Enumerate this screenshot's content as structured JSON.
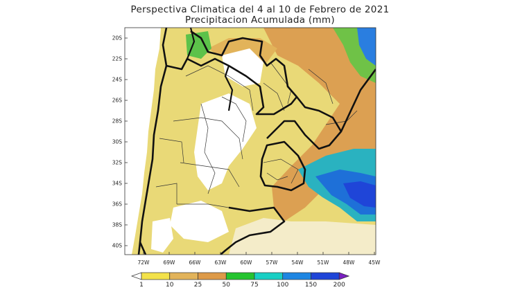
{
  "title": {
    "line1": "Perspectiva Climatica del 4 al 10 de Febrero de 2021",
    "line2": "Precipitacion Acumulada (mm)"
  },
  "map": {
    "lat_ticks": [
      "20S",
      "22S",
      "24S",
      "26S",
      "28S",
      "30S",
      "32S",
      "34S",
      "36S",
      "38S",
      "40S"
    ],
    "lon_ticks": [
      "72W",
      "69W",
      "66W",
      "63W",
      "60W",
      "57W",
      "54W",
      "51W",
      "48W",
      "45W"
    ]
  },
  "colorbar": {
    "labels": [
      "1",
      "10",
      "25",
      "50",
      "75",
      "100",
      "150",
      "200"
    ],
    "colors": [
      "#ffffff",
      "#f3e24a",
      "#e2b35a",
      "#dd9a48",
      "#25c430",
      "#19cfc4",
      "#1e86e2",
      "#1f45d8",
      "#7a1fc0"
    ]
  }
}
